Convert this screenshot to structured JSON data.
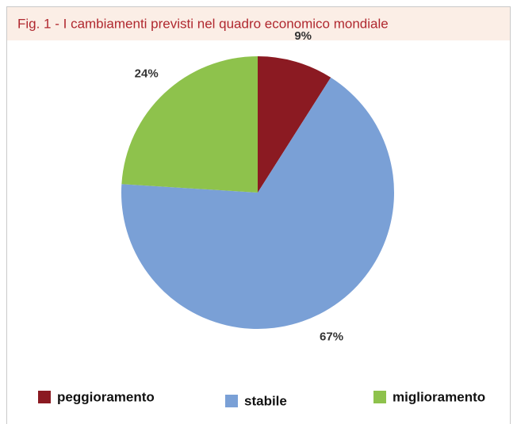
{
  "chart_data": {
    "type": "pie",
    "title": "Fig. 1 - I cambiamenti previsti nel quadro economico mondiale",
    "categories": [
      "peggioramento",
      "stabile",
      "miglioramento"
    ],
    "values": [
      9,
      67,
      24
    ],
    "value_labels": [
      "9%",
      "67%",
      "24%"
    ],
    "colors": [
      "#8b1a22",
      "#7aa0d6",
      "#8ec24c"
    ],
    "legend": "bottom"
  }
}
